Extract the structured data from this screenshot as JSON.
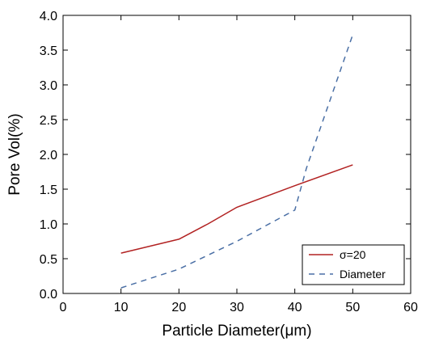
{
  "chart_data": {
    "type": "line",
    "title": "",
    "xlabel": "Particle Diameter(μm)",
    "ylabel": "Pore Vol(%)",
    "xlim": [
      0,
      60
    ],
    "ylim": [
      0.0,
      4.0
    ],
    "xticks": [
      0,
      10,
      20,
      30,
      40,
      50,
      60
    ],
    "xtick_labels": [
      "0",
      "10",
      "20",
      "30",
      "40",
      "50",
      "60"
    ],
    "yticks": [
      0.0,
      0.5,
      1.0,
      1.5,
      2.0,
      2.5,
      3.0,
      3.5,
      4.0
    ],
    "ytick_labels": [
      "0.0",
      "0.5",
      "1.0",
      "1.5",
      "2.0",
      "2.5",
      "3.0",
      "3.5",
      "4.0"
    ],
    "grid": false,
    "legend_position": "bottom-right",
    "series": [
      {
        "name": "σ=20",
        "color": "#b22222",
        "dash": "solid",
        "x": [
          10,
          20,
          25,
          30,
          40,
          50
        ],
        "y": [
          0.58,
          0.78,
          1.0,
          1.24,
          1.55,
          1.85
        ]
      },
      {
        "name": "Diameter",
        "color": "#4a6fa5",
        "dash": "dashed",
        "x": [
          10,
          20,
          30,
          40,
          42,
          50
        ],
        "y": [
          0.08,
          0.35,
          0.75,
          1.2,
          1.8,
          3.72
        ]
      }
    ]
  }
}
